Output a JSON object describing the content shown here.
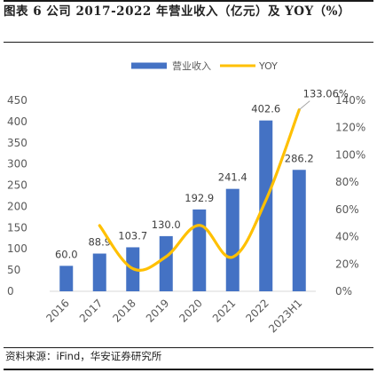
{
  "figure": {
    "title": "图表 6 公司 2017-2022 年营业收入（亿元）及 YOY（%）",
    "source": "资料来源：iFind，华安证券研究所"
  },
  "colors": {
    "bar": "#4472C4",
    "line": "#FFC000",
    "axis_text": "#595959",
    "grid": "#D9D9D9"
  },
  "chart_data": {
    "type": "bar",
    "categories": [
      "2016",
      "2017",
      "2018",
      "2019",
      "2020",
      "2021",
      "2022",
      "2023H1"
    ],
    "series": [
      {
        "name": "营业收入",
        "type": "bar",
        "axis": "left",
        "values": [
          60.0,
          88.9,
          103.7,
          130.0,
          192.9,
          241.4,
          402.6,
          286.2
        ],
        "labels": [
          "60.0",
          "88.9",
          "103.7",
          "130.0",
          "192.9",
          "241.4",
          "402.6",
          "286.2"
        ]
      },
      {
        "name": "YOY",
        "type": "line",
        "axis": "right",
        "values": [
          null,
          48.2,
          16.6,
          25.4,
          48.4,
          25.1,
          66.8,
          133.06
        ]
      }
    ],
    "annotations": [
      {
        "category": "2023H1",
        "series": "YOY",
        "text": "133.06%"
      }
    ],
    "y_left": {
      "min": 0,
      "max": 450,
      "ticks": [
        0,
        50,
        100,
        150,
        200,
        250,
        300,
        350,
        400,
        450
      ]
    },
    "y_right": {
      "min": 0,
      "max": 140,
      "ticks": [
        0,
        20,
        40,
        60,
        80,
        100,
        120,
        140
      ],
      "tick_labels": [
        "0%",
        "20%",
        "40%",
        "60%",
        "80%",
        "100%",
        "120%",
        "140%"
      ]
    },
    "legend": {
      "position": "top"
    },
    "grid": false
  }
}
